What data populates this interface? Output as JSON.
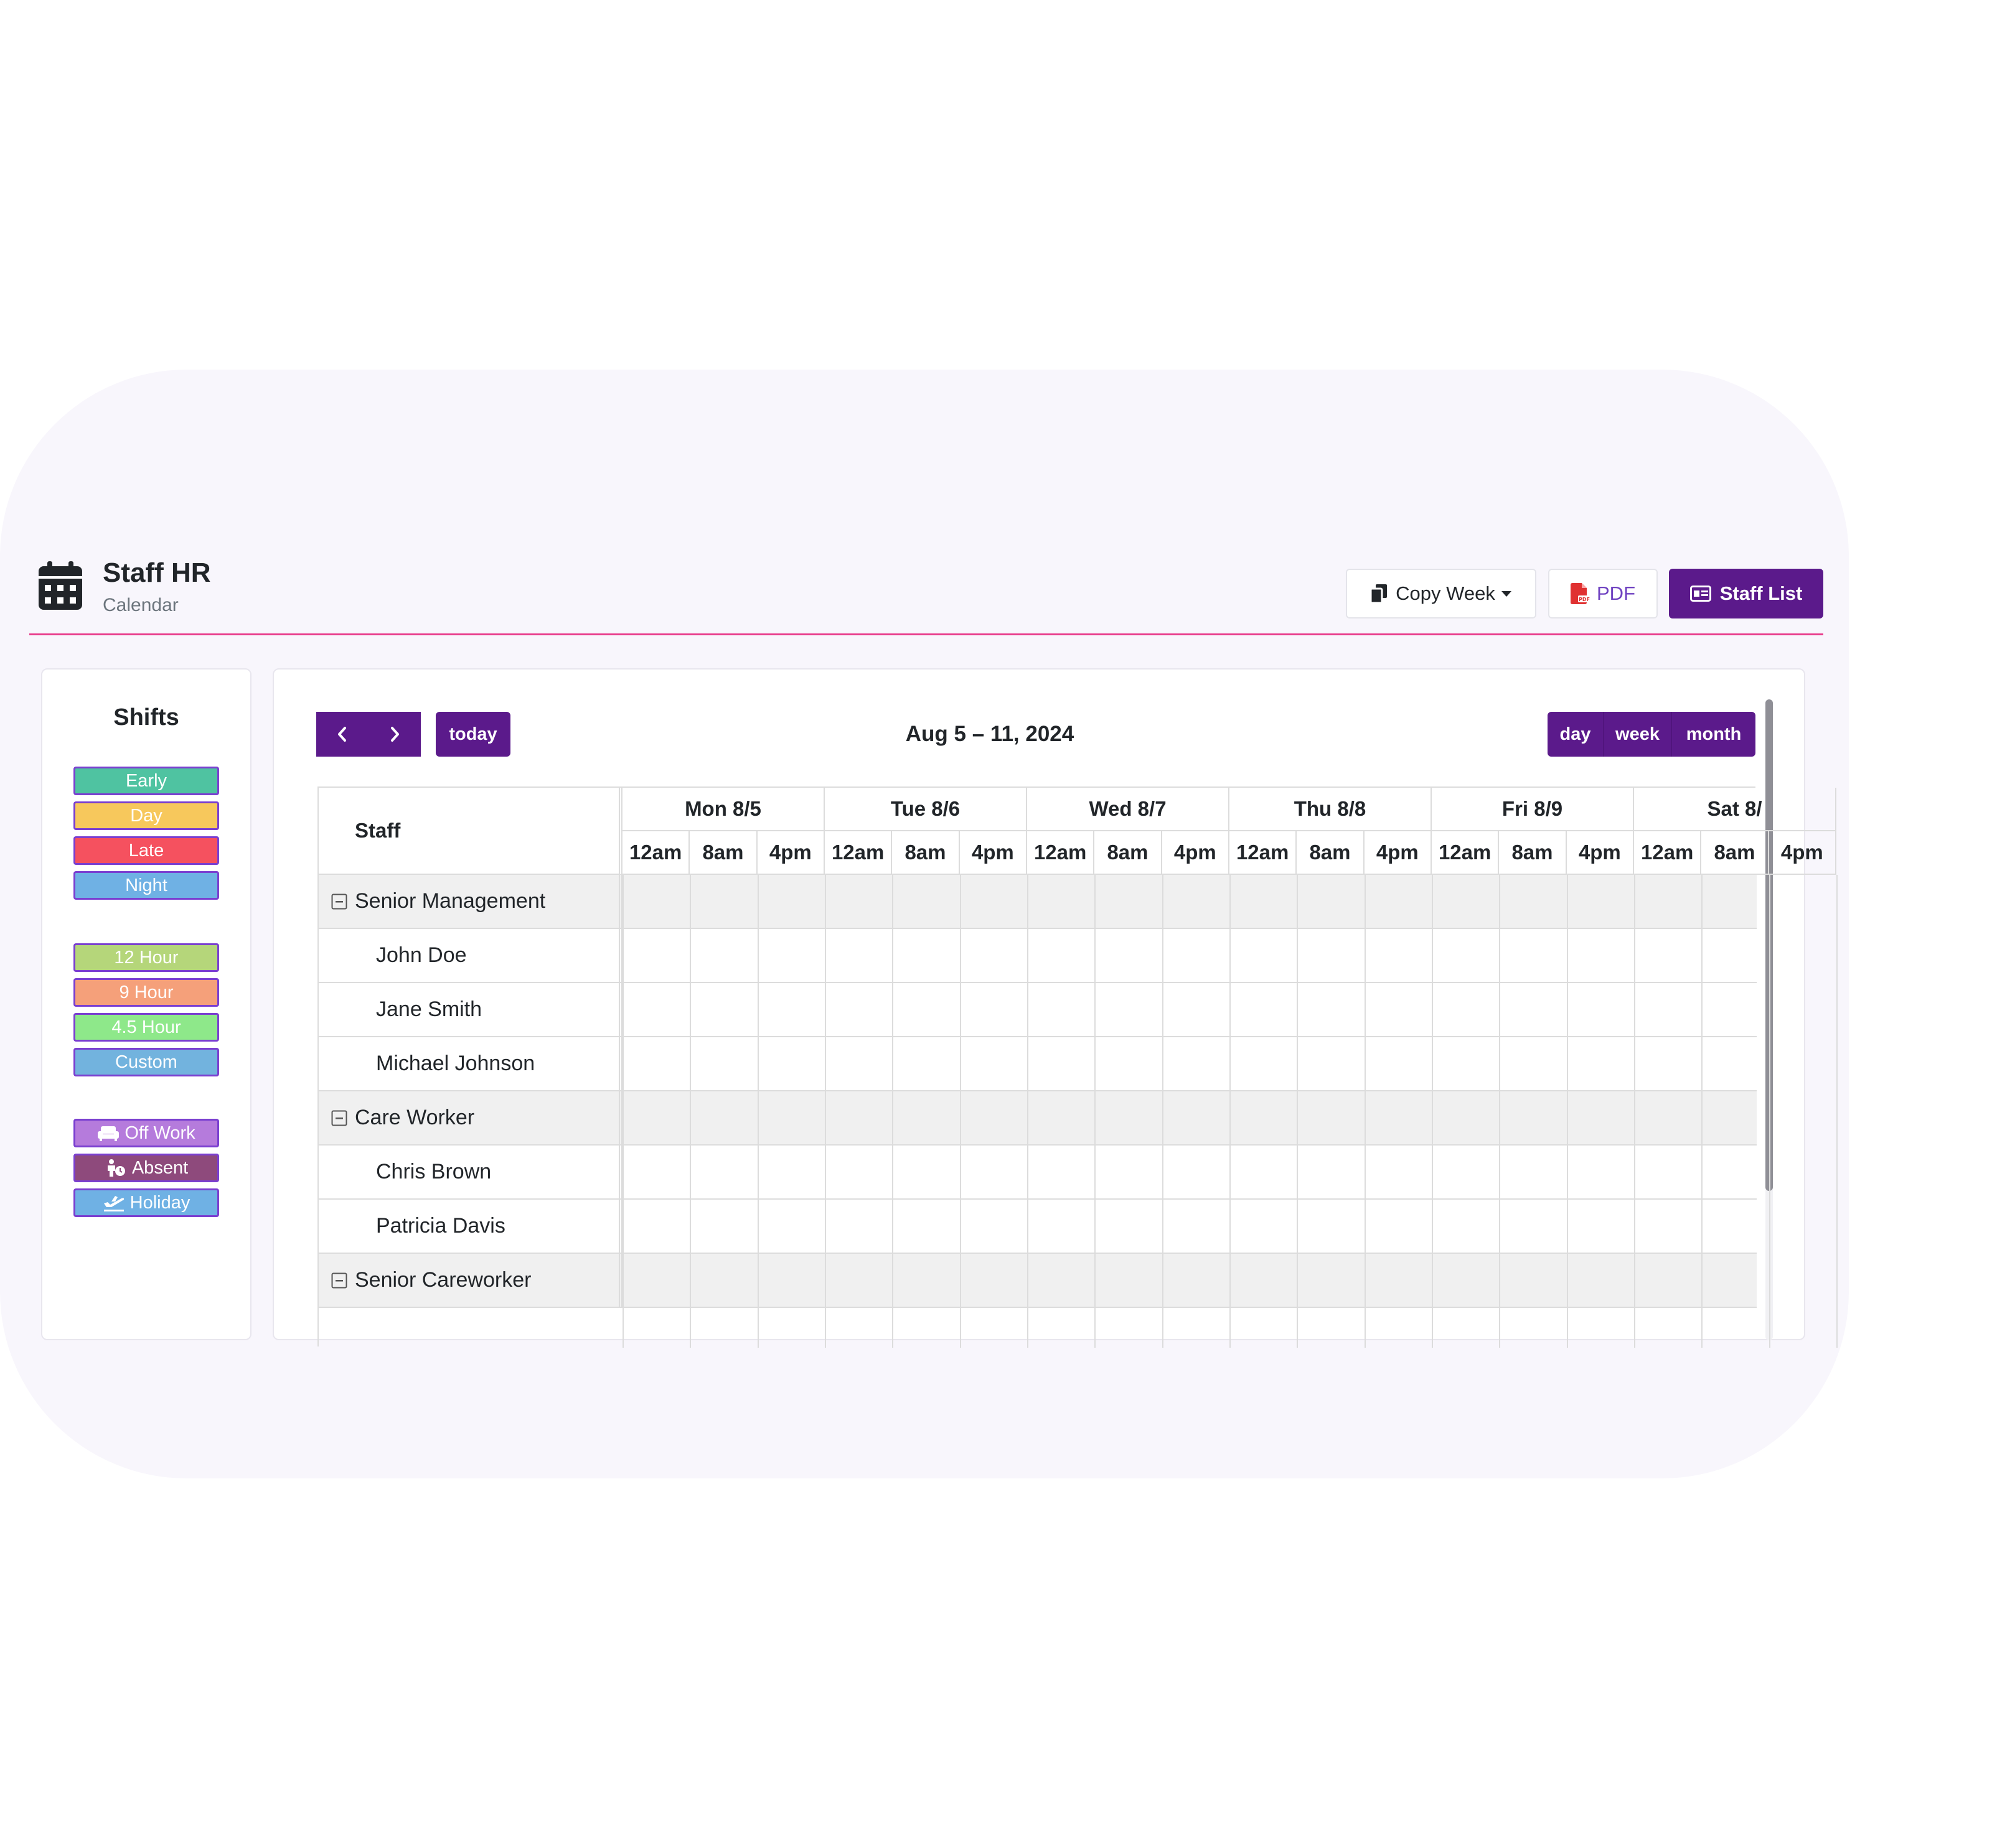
{
  "header": {
    "title": "Staff HR",
    "subtitle": "Calendar",
    "icon": "calendar-icon",
    "accent_line_color": "#e83e8c"
  },
  "toolbar": {
    "copy_week_label": "Copy Week",
    "pdf_label": "PDF",
    "staff_list_label": "Staff List"
  },
  "shifts": {
    "title": "Shifts",
    "tags": [
      {
        "label": "Early",
        "color": "#4fc3a1"
      },
      {
        "label": "Day",
        "color": "#f7c85c"
      },
      {
        "label": "Late",
        "color": "#f5515f"
      },
      {
        "label": "Night",
        "color": "#6fb1e4"
      },
      {
        "label": "12 Hour",
        "color": "#b5d67a"
      },
      {
        "label": "9 Hour",
        "color": "#f5a07a"
      },
      {
        "label": "4.5 Hour",
        "color": "#8ee88a"
      },
      {
        "label": "Custom",
        "color": "#72b3de"
      },
      {
        "label": "Off Work",
        "color": "#b57bdc",
        "icon": "couch-icon"
      },
      {
        "label": "Absent",
        "color": "#8e4a7c",
        "icon": "person-clock-icon"
      },
      {
        "label": "Holiday",
        "color": "#6fb1e4",
        "icon": "plane-departure-icon"
      }
    ]
  },
  "calendar": {
    "date_range": "Aug 5 – 11, 2024",
    "today_label": "today",
    "views": [
      "day",
      "week",
      "month"
    ],
    "staff_header": "Staff",
    "days": [
      "Mon 8/5",
      "Tue 8/6",
      "Wed 8/7",
      "Thu 8/8",
      "Fri 8/9",
      "Sat 8/"
    ],
    "slots": [
      "12am",
      "8am",
      "4pm"
    ],
    "rows": [
      {
        "type": "group",
        "label": "Senior Management"
      },
      {
        "type": "member",
        "label": "John Doe"
      },
      {
        "type": "member",
        "label": "Jane Smith"
      },
      {
        "type": "member",
        "label": "Michael Johnson"
      },
      {
        "type": "group",
        "label": "Care Worker"
      },
      {
        "type": "member",
        "label": "Chris Brown"
      },
      {
        "type": "member",
        "label": "Patricia Davis"
      },
      {
        "type": "group",
        "label": "Senior Careworker"
      }
    ]
  },
  "colors": {
    "primary": "#5b1a8b",
    "tag_border": "#7a3fd0",
    "pdf_text": "#6f42c1"
  }
}
